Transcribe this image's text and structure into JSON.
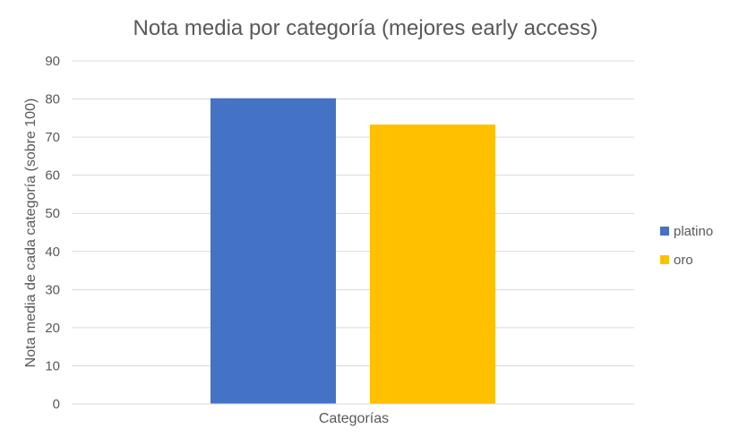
{
  "chart_data": {
    "type": "bar",
    "title": "Nota media por categoría (mejores early access)",
    "xlabel": "Categorías",
    "ylabel": "Nota media de cada categoría (sobre 100)",
    "ylim": [
      0,
      90
    ],
    "yticks": [
      0,
      10,
      20,
      30,
      40,
      50,
      60,
      70,
      80,
      90
    ],
    "grid": true,
    "legend_position": "right",
    "series": [
      {
        "name": "platino",
        "value": 80.2,
        "color": "#4472C4"
      },
      {
        "name": "oro",
        "value": 73.3,
        "color": "#FFC000"
      }
    ]
  }
}
